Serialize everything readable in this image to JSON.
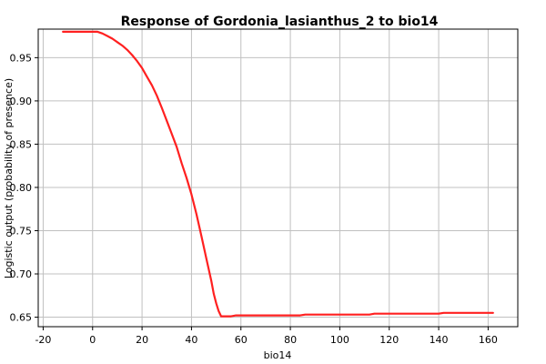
{
  "chart_data": {
    "type": "line",
    "title": "Response of Gordonia_lasianthus_2 to bio14",
    "xlabel": "bio14",
    "ylabel": "Logistic output (probability of presence)",
    "xlim": [
      -22,
      172
    ],
    "ylim": [
      0.639,
      0.983
    ],
    "x_ticks": [
      -20,
      0,
      20,
      40,
      60,
      80,
      100,
      120,
      140,
      160
    ],
    "x_tick_labels": [
      "-20",
      "0",
      "20",
      "40",
      "60",
      "80",
      "100",
      "120",
      "140",
      "160"
    ],
    "y_ticks": [
      0.65,
      0.7,
      0.75,
      0.8,
      0.85,
      0.9,
      0.95
    ],
    "y_tick_labels": [
      "0.65",
      "0.70",
      "0.75",
      "0.80",
      "0.85",
      "0.90",
      "0.95"
    ],
    "grid": true,
    "series": [
      {
        "color": "#ff2020",
        "x": [
          -12,
          0,
          2,
          4,
          6,
          8,
          10,
          12,
          14,
          16,
          18,
          20,
          22,
          24,
          26,
          28,
          30,
          32,
          34,
          36,
          38,
          40,
          42,
          44,
          46,
          48,
          49,
          50,
          51,
          52,
          54,
          56,
          58,
          60,
          70,
          80,
          84,
          86,
          100,
          112,
          114,
          130,
          140,
          142,
          162
        ],
        "y": [
          0.98,
          0.98,
          0.98,
          0.978,
          0.975,
          0.972,
          0.968,
          0.964,
          0.959,
          0.953,
          0.946,
          0.938,
          0.928,
          0.918,
          0.906,
          0.892,
          0.877,
          0.862,
          0.847,
          0.828,
          0.811,
          0.792,
          0.769,
          0.744,
          0.718,
          0.692,
          0.677,
          0.666,
          0.657,
          0.651,
          0.651,
          0.651,
          0.652,
          0.652,
          0.652,
          0.652,
          0.652,
          0.653,
          0.653,
          0.653,
          0.654,
          0.654,
          0.654,
          0.655,
          0.655
        ]
      }
    ]
  }
}
